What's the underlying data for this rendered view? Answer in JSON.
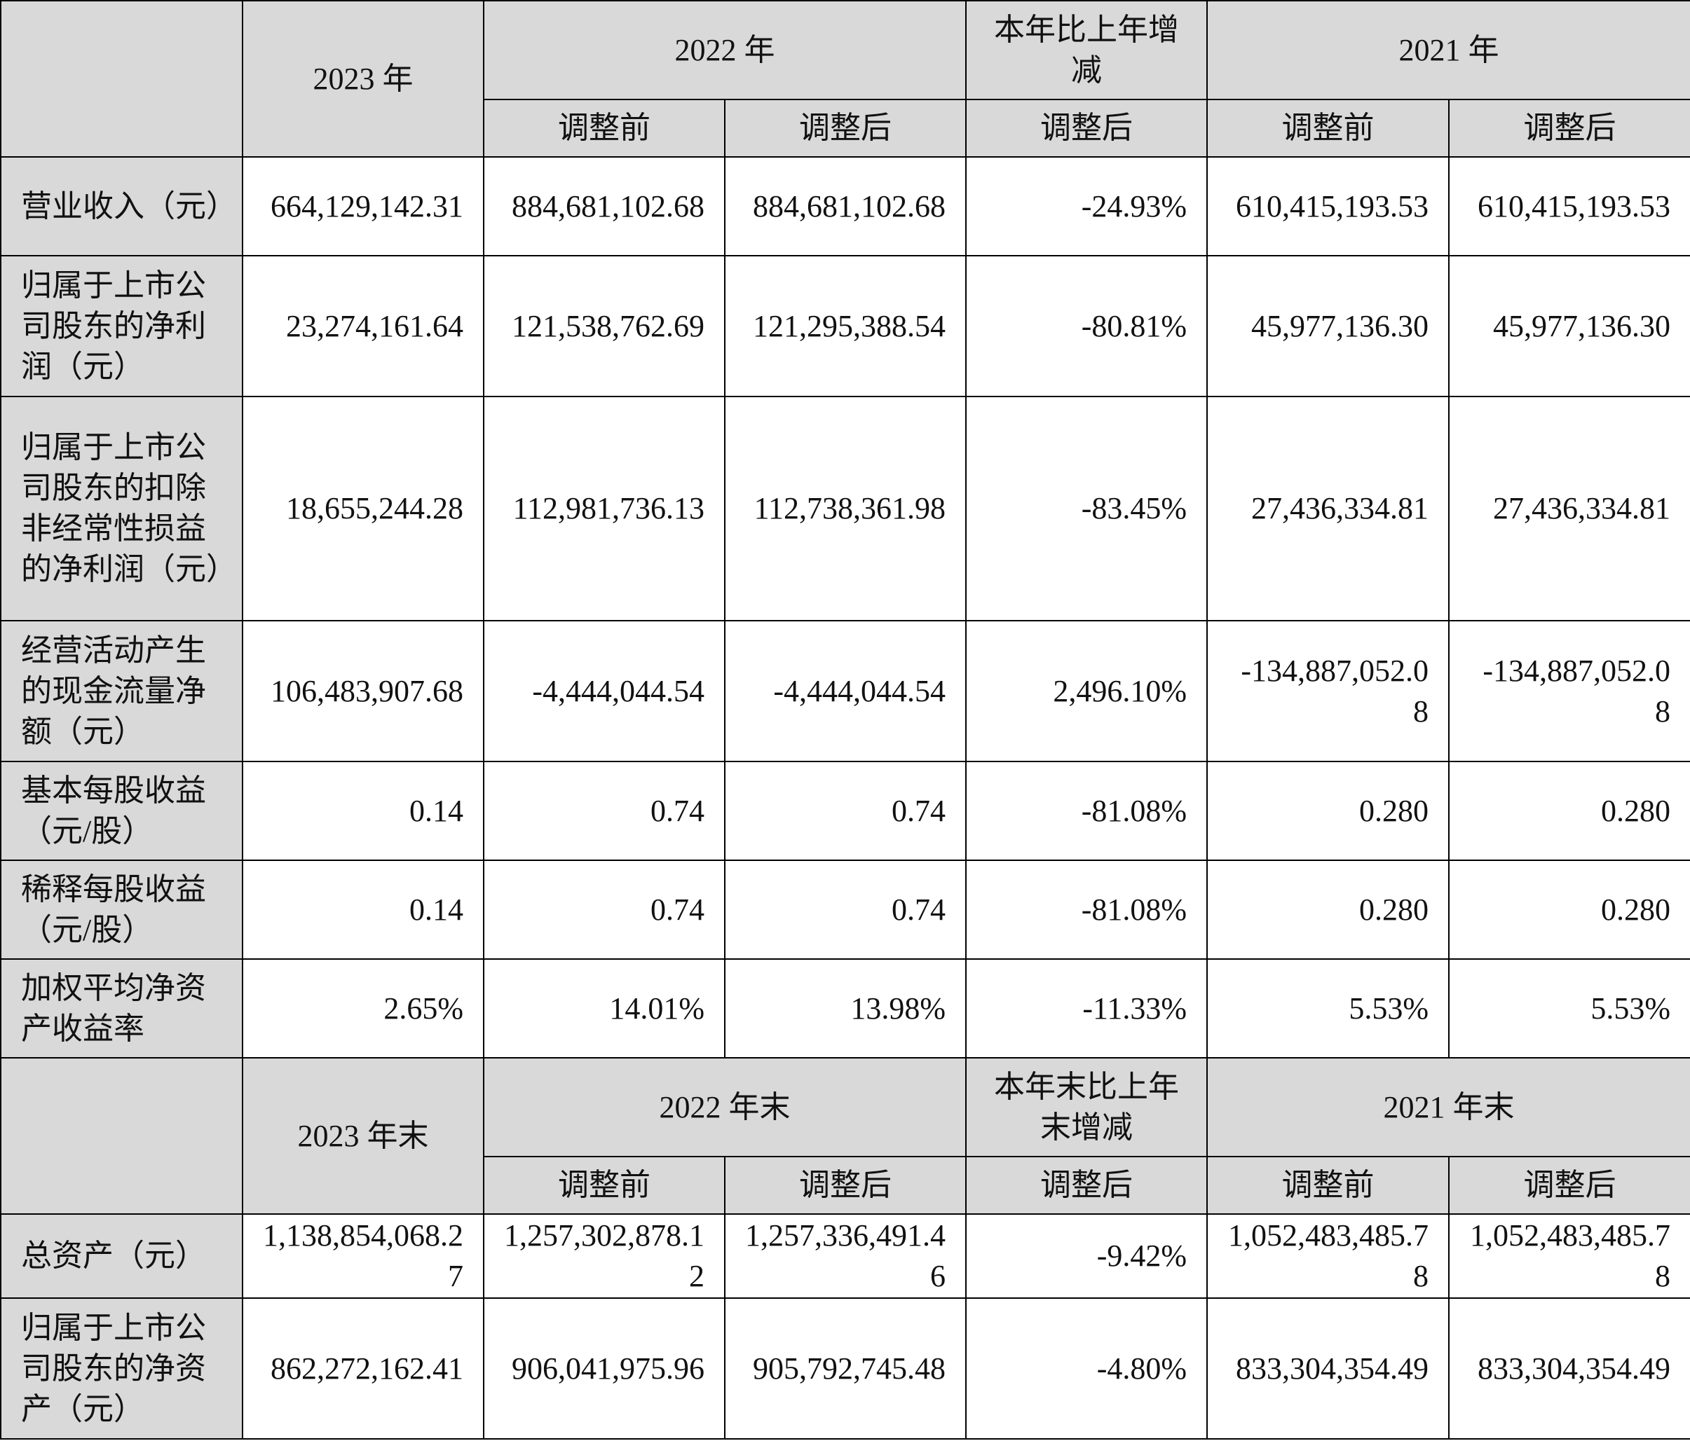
{
  "annual": {
    "headers": {
      "y2023": "2023 年",
      "y2022": "2022 年",
      "change": "本年比上年增减",
      "y2021": "2021 年",
      "before": "调整前",
      "after": "调整后"
    },
    "rows": [
      {
        "label": "营业收入（元）",
        "v2023": "664,129,142.31",
        "v2022_before": "884,681,102.68",
        "v2022_after": "884,681,102.68",
        "change": "-24.93%",
        "v2021_before": "610,415,193.53",
        "v2021_after": "610,415,193.53"
      },
      {
        "label": "归属于上市公司股东的净利润（元）",
        "v2023": "23,274,161.64",
        "v2022_before": "121,538,762.69",
        "v2022_after": "121,295,388.54",
        "change": "-80.81%",
        "v2021_before": "45,977,136.30",
        "v2021_after": "45,977,136.30"
      },
      {
        "label": "归属于上市公司股东的扣除非经常性损益的净利润（元）",
        "v2023": "18,655,244.28",
        "v2022_before": "112,981,736.13",
        "v2022_after": "112,738,361.98",
        "change": "-83.45%",
        "v2021_before": "27,436,334.81",
        "v2021_after": "27,436,334.81"
      },
      {
        "label": "经营活动产生的现金流量净额（元）",
        "v2023": "106,483,907.68",
        "v2022_before": "-4,444,044.54",
        "v2022_after": "-4,444,044.54",
        "change": "2,496.10%",
        "v2021_before": "-134,887,052.08",
        "v2021_after": "-134,887,052.08"
      },
      {
        "label": "基本每股收益（元/股）",
        "v2023": "0.14",
        "v2022_before": "0.74",
        "v2022_after": "0.74",
        "change": "-81.08%",
        "v2021_before": "0.280",
        "v2021_after": "0.280"
      },
      {
        "label": "稀释每股收益（元/股）",
        "v2023": "0.14",
        "v2022_before": "0.74",
        "v2022_after": "0.74",
        "change": "-81.08%",
        "v2021_before": "0.280",
        "v2021_after": "0.280"
      },
      {
        "label": "加权平均净资产收益率",
        "v2023": "2.65%",
        "v2022_before": "14.01%",
        "v2022_after": "13.98%",
        "change": "-11.33%",
        "v2021_before": "5.53%",
        "v2021_after": "5.53%"
      }
    ]
  },
  "yearend": {
    "headers": {
      "y2023": "2023 年末",
      "y2022": "2022 年末",
      "change": "本年末比上年末增减",
      "y2021": "2021 年末",
      "before": "调整前",
      "after": "调整后"
    },
    "rows": [
      {
        "label": "总资产（元）",
        "v2023": "1,138,854,068.27",
        "v2022_before": "1,257,302,878.12",
        "v2022_after": "1,257,336,491.46",
        "change": "-9.42%",
        "v2021_before": "1,052,483,485.78",
        "v2021_after": "1,052,483,485.78"
      },
      {
        "label": "归属于上市公司股东的净资产（元）",
        "v2023": "862,272,162.41",
        "v2022_before": "906,041,975.96",
        "v2022_after": "905,792,745.48",
        "change": "-4.80%",
        "v2021_before": "833,304,354.49",
        "v2021_after": "833,304,354.49"
      }
    ]
  }
}
